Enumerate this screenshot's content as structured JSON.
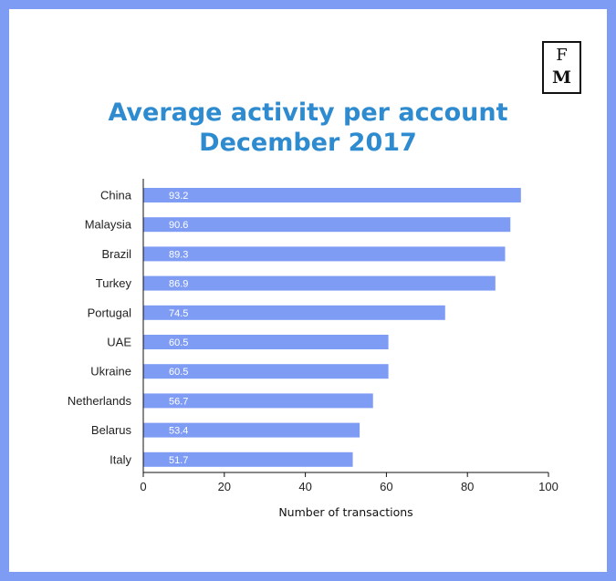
{
  "logo": {
    "top": "F",
    "bottom": "M"
  },
  "chart_data": {
    "type": "bar",
    "orientation": "horizontal",
    "title": "Average activity per account",
    "subtitle": "December 2017",
    "xlabel": "Number of transactions",
    "ylabel": "",
    "xlim": [
      0,
      100
    ],
    "xticks": [
      0,
      20,
      40,
      60,
      80,
      100
    ],
    "categories": [
      "China",
      "Malaysia",
      "Brazil",
      "Turkey",
      "Portugal",
      "UAE",
      "Ukraine",
      "Netherlands",
      "Belarus",
      "Italy"
    ],
    "values": [
      93.2,
      90.6,
      89.3,
      86.9,
      74.5,
      60.5,
      60.5,
      56.7,
      53.4,
      51.7
    ],
    "value_labels": [
      "93.2",
      "90.6",
      "89.3",
      "86.9",
      "74.5",
      "60.5",
      "60.5",
      "56.7",
      "53.4",
      "51.7"
    ],
    "bar_color": "#7f9cf5",
    "title_color": "#2e8bd0",
    "grid": false,
    "legend": "none"
  }
}
